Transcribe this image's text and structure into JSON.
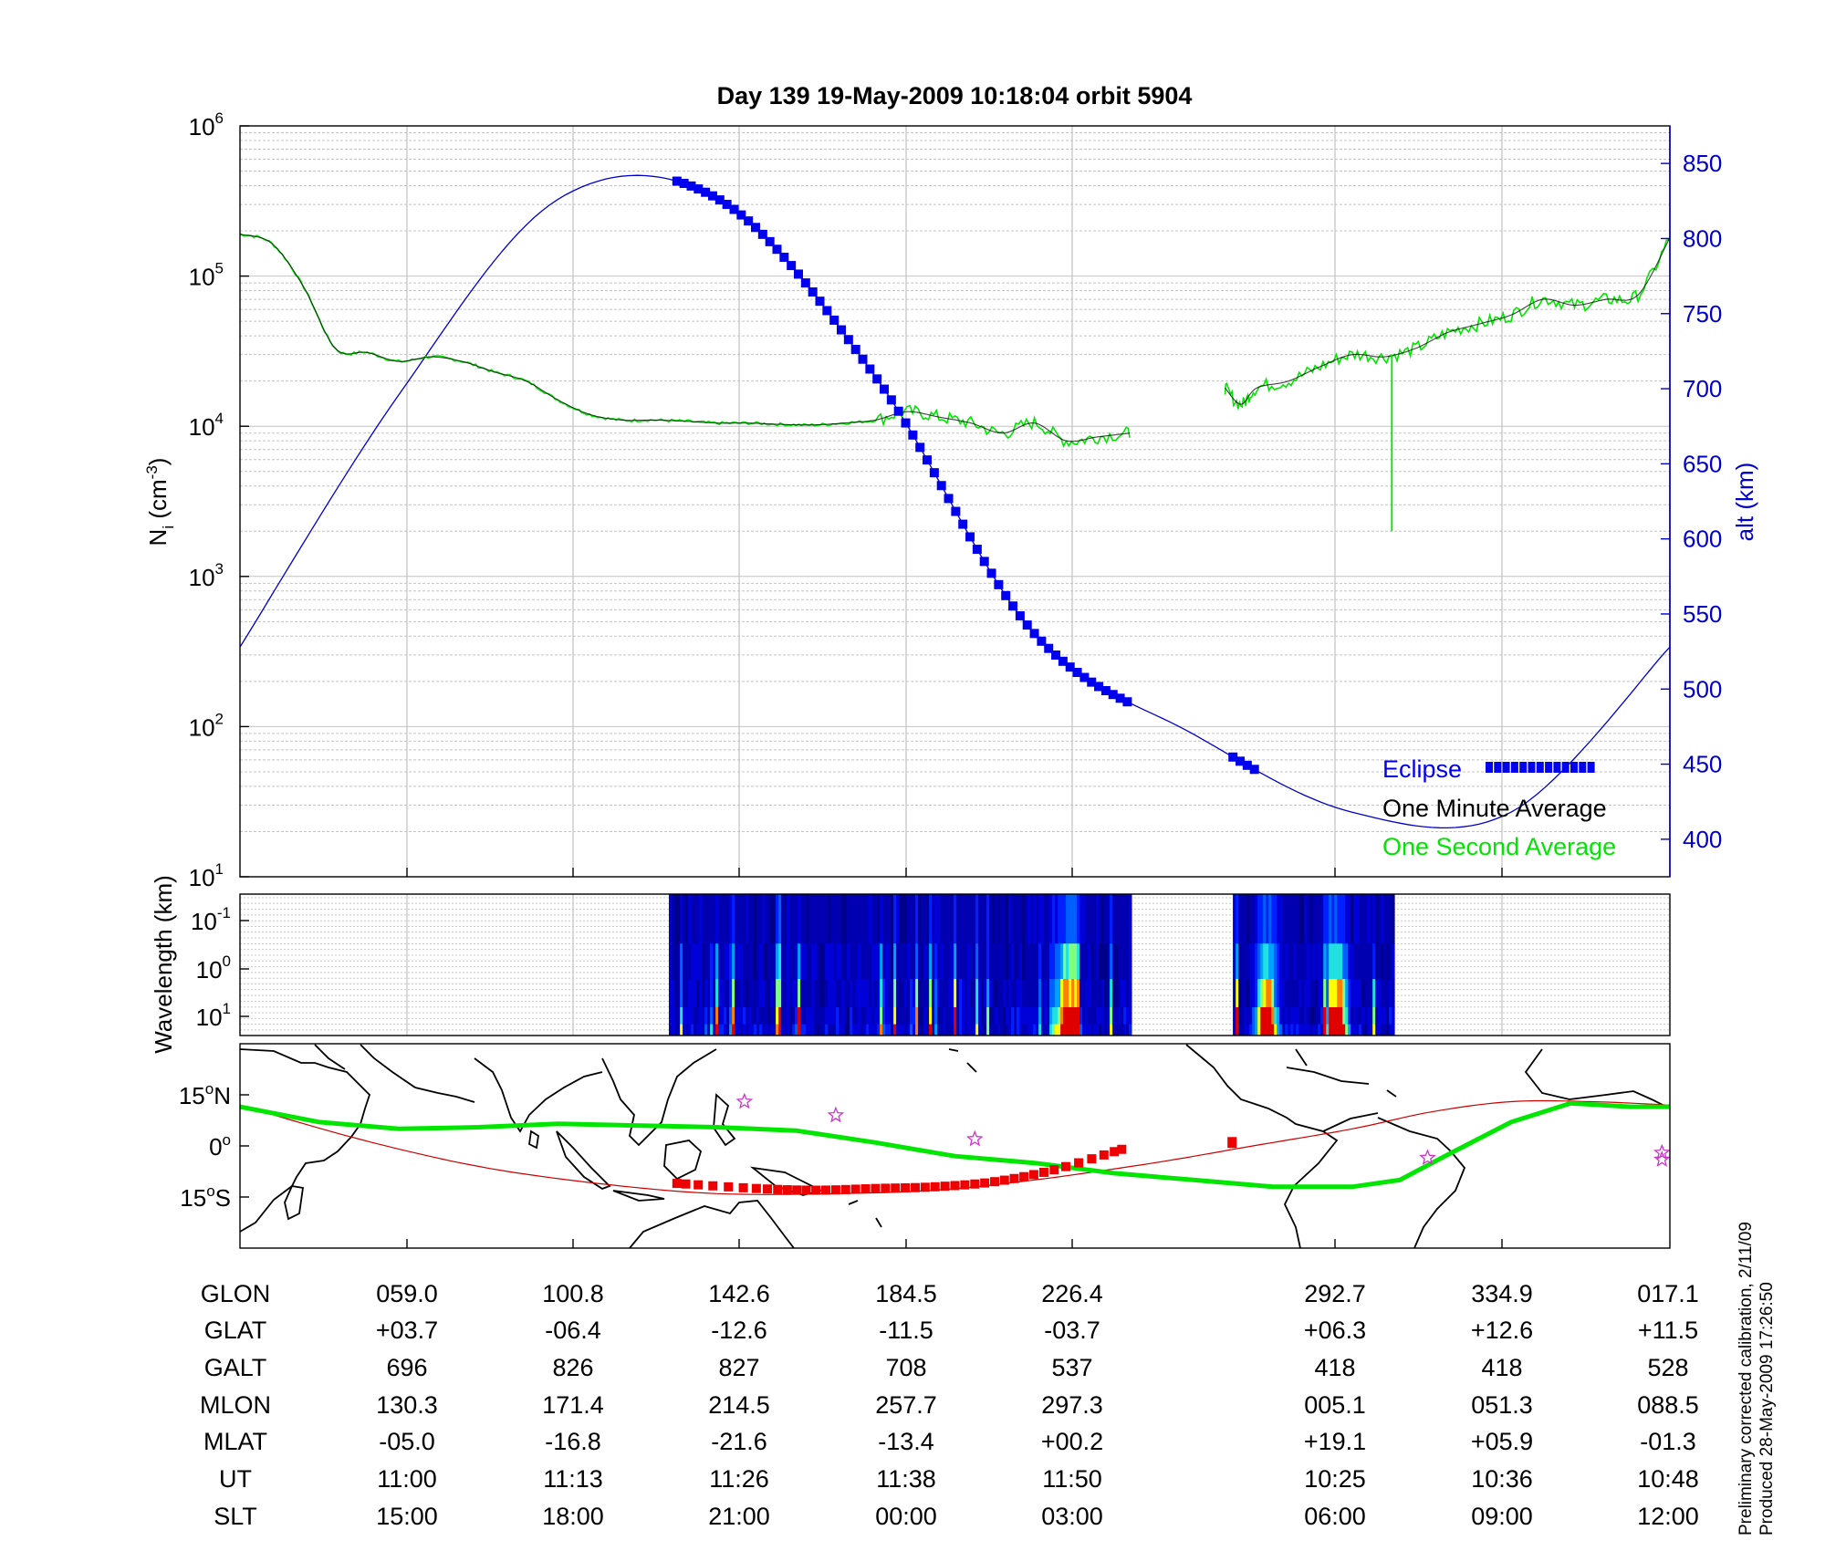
{
  "figure": {
    "title": "Day 139  19-May-2009 10:18:04   orbit 5904",
    "footer_line1": "Preliminary corrected calibration, 2/11/09",
    "footer_line2": "Produced 28-May-2009 17:26:50"
  },
  "colors": {
    "altitude": "#0000cc",
    "eclipse": "#0000ee",
    "one_minute": "#000000",
    "one_second": "#00e600",
    "track": "#00e600",
    "track_eclipse": "#ee0000",
    "magnetic_equator": "#cc0000",
    "stars": "#cc33cc"
  },
  "chart_data": [
    {
      "type": "line",
      "panel": "density",
      "ylabel_main": "N",
      "ylabel_sub": "i",
      "ylabel_unit": " (cm",
      "ylabel_unit_sup": "-3",
      "ylabel_close": ")",
      "y_scale": "log",
      "ylim": [
        10,
        1000000
      ],
      "y_ticks": [
        {
          "base": "10",
          "exp": "1"
        },
        {
          "base": "10",
          "exp": "2"
        },
        {
          "base": "10",
          "exp": "3"
        },
        {
          "base": "10",
          "exp": "4"
        },
        {
          "base": "10",
          "exp": "5"
        },
        {
          "base": "10",
          "exp": "6"
        }
      ],
      "ylabel_right": "alt (km)",
      "y2lim": [
        375,
        875
      ],
      "y2_ticks": [
        "400",
        "450",
        "500",
        "550",
        "600",
        "650",
        "700",
        "750",
        "800",
        "850"
      ],
      "x_range_minutes": [
        0,
        90
      ],
      "grid": true,
      "legend_position": "bottom-right",
      "legend": [
        {
          "label": "Eclipse",
          "color": "#0000ee"
        },
        {
          "label": "One Minute Average",
          "color": "#000000"
        },
        {
          "label": "One Second Average",
          "color": "#00e600"
        }
      ],
      "altitude_km": {
        "x": [
          0,
          10,
          20,
          30,
          40,
          50,
          60,
          70,
          80,
          90
        ],
        "y": [
          528,
          696,
          826,
          827,
          708,
          537,
          470,
          418,
          418,
          528
        ]
      },
      "eclipse_x_ranges": [
        [
          27.5,
          56
        ],
        [
          62.5,
          64
        ]
      ],
      "ni_segments": [
        {
          "x": [
            0,
            2,
            4,
            6,
            8,
            10,
            12,
            14,
            16,
            18,
            20,
            22,
            24,
            26,
            28,
            30,
            32,
            34,
            36,
            38,
            40,
            42,
            44,
            46,
            48,
            50,
            52,
            54,
            56
          ],
          "y": [
            190000,
            165000,
            85000,
            33000,
            31000,
            27000,
            29000,
            27000,
            23000,
            20000,
            15000,
            12000,
            11000,
            11000,
            10800,
            10500,
            10500,
            10300,
            10200,
            10500,
            11000,
            12500,
            11500,
            10500,
            9000,
            10500,
            8000,
            8500,
            9000
          ]
        },
        {
          "x": [
            62,
            63,
            64,
            66,
            68,
            70,
            72,
            74,
            76,
            78,
            80,
            82,
            84,
            86,
            88,
            90
          ],
          "y": [
            18000,
            14000,
            18000,
            20000,
            25000,
            30000,
            29000,
            33000,
            42000,
            48000,
            55000,
            70000,
            64000,
            70000,
            75000,
            180000
          ]
        }
      ],
      "ni_spike": {
        "x": 72.5,
        "y_top": 30000,
        "y_bottom": 2000
      }
    },
    {
      "type": "heatmap",
      "panel": "spectrogram",
      "ylabel": "Wavelength (km)",
      "y_scale": "log",
      "y_ticks": [
        {
          "base": "10",
          "exp": "-1"
        },
        {
          "base": "10",
          "exp": "0"
        },
        {
          "base": "10",
          "exp": "1"
        }
      ],
      "x_data_ranges": [
        [
          27,
          56
        ],
        [
          62.5,
          72.5
        ]
      ],
      "hotspots_x": [
        52,
        64.5,
        69
      ]
    },
    {
      "type": "line",
      "panel": "map",
      "xlim": [
        0,
        360
      ],
      "ylim": [
        -30,
        30
      ],
      "y_ticks": [
        {
          "value": "15",
          "deg": "o",
          "hemi": "N"
        },
        {
          "value": "0",
          "deg": "o",
          "hemi": ""
        },
        {
          "value": "15",
          "deg": "o",
          "hemi": "S"
        }
      ],
      "track_lat": {
        "x": [
          0,
          20,
          40,
          60,
          80,
          100,
          120,
          140,
          160,
          180,
          200,
          220,
          240,
          260,
          280,
          292,
          305,
          320,
          335,
          350,
          360
        ],
        "y": [
          11.5,
          7,
          5,
          5.5,
          6.5,
          6,
          5.5,
          4.5,
          1,
          -3,
          -5,
          -8,
          -10,
          -12,
          -12,
          -10,
          -2,
          7,
          12.5,
          11.5,
          11.5
        ]
      },
      "magnetic_equator": {
        "x": [
          0,
          30,
          60,
          90,
          120,
          150,
          175,
          200,
          230,
          255,
          280,
          300,
          320,
          340,
          360
        ],
        "y": [
          12,
          2,
          -6,
          -11,
          -14,
          -14,
          -13,
          -10,
          -5,
          0,
          5,
          10,
          13,
          13,
          12
        ]
      },
      "eclipse_track": {
        "x": [
          110,
          130,
          145,
          160,
          175,
          190,
          205,
          222
        ],
        "y": [
          -11,
          -12.5,
          -13,
          -12.5,
          -12,
          -10.5,
          -7,
          -1
        ]
      },
      "eclipse_track_2": {
        "x": [
          250
        ],
        "y": [
          1
        ]
      },
      "stars": [
        {
          "x": 127,
          "y": 13
        },
        {
          "x": 150,
          "y": 9
        },
        {
          "x": 185,
          "y": 2
        },
        {
          "x": 299,
          "y": -3.5
        },
        {
          "x": 358,
          "y": -2
        },
        {
          "x": 358,
          "y": -4
        }
      ]
    }
  ],
  "table": {
    "row_labels": [
      "GLON",
      "GLAT",
      "GALT",
      "MLON",
      "MLAT",
      "UT",
      "SLT"
    ],
    "columns": [
      [
        "059.0",
        "+03.7",
        "696",
        "130.3",
        "-05.0",
        "11:00",
        "15:00"
      ],
      [
        "100.8",
        "-06.4",
        "826",
        "171.4",
        "-16.8",
        "11:13",
        "18:00"
      ],
      [
        "142.6",
        "-12.6",
        "827",
        "214.5",
        "-21.6",
        "11:26",
        "21:00"
      ],
      [
        "184.5",
        "-11.5",
        "708",
        "257.7",
        "-13.4",
        "11:38",
        "00:00"
      ],
      [
        "226.4",
        "-03.7",
        "537",
        "297.3",
        "+00.2",
        "11:50",
        "03:00"
      ],
      [
        "292.7",
        "+06.3",
        "418",
        "005.1",
        "+19.1",
        "10:25",
        "06:00"
      ],
      [
        "334.9",
        "+12.6",
        "418",
        "051.3",
        "+05.9",
        "10:36",
        "09:00"
      ],
      [
        "017.1",
        "+11.5",
        "528",
        "088.5",
        "-01.3",
        "10:48",
        "12:00"
      ]
    ]
  }
}
